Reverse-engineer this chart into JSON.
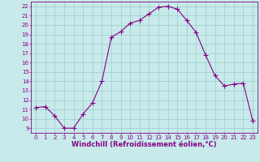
{
  "x": [
    0,
    1,
    2,
    3,
    4,
    5,
    6,
    7,
    8,
    9,
    10,
    11,
    12,
    13,
    14,
    15,
    16,
    17,
    18,
    19,
    20,
    21,
    22,
    23
  ],
  "y": [
    11.2,
    11.3,
    10.3,
    9.0,
    9.0,
    10.5,
    11.7,
    14.0,
    18.7,
    19.3,
    20.2,
    20.5,
    21.2,
    21.9,
    22.0,
    21.7,
    20.5,
    19.2,
    16.8,
    14.6,
    13.5,
    13.7,
    13.8,
    9.8
  ],
  "line_color": "#880088",
  "marker": "+",
  "marker_size": 4,
  "bg_color": "#c8eaea",
  "grid_color": "#99cccc",
  "xlabel": "Windchill (Refroidissement éolien,°C)",
  "ylim": [
    8.5,
    22.5
  ],
  "xlim": [
    -0.5,
    23.5
  ],
  "yticks": [
    9,
    10,
    11,
    12,
    13,
    14,
    15,
    16,
    17,
    18,
    19,
    20,
    21,
    22
  ],
  "xticks": [
    0,
    1,
    2,
    3,
    4,
    5,
    6,
    7,
    8,
    9,
    10,
    11,
    12,
    13,
    14,
    15,
    16,
    17,
    18,
    19,
    20,
    21,
    22,
    23
  ],
  "tick_fontsize": 5,
  "xlabel_fontsize": 6,
  "spine_color": "#880088"
}
